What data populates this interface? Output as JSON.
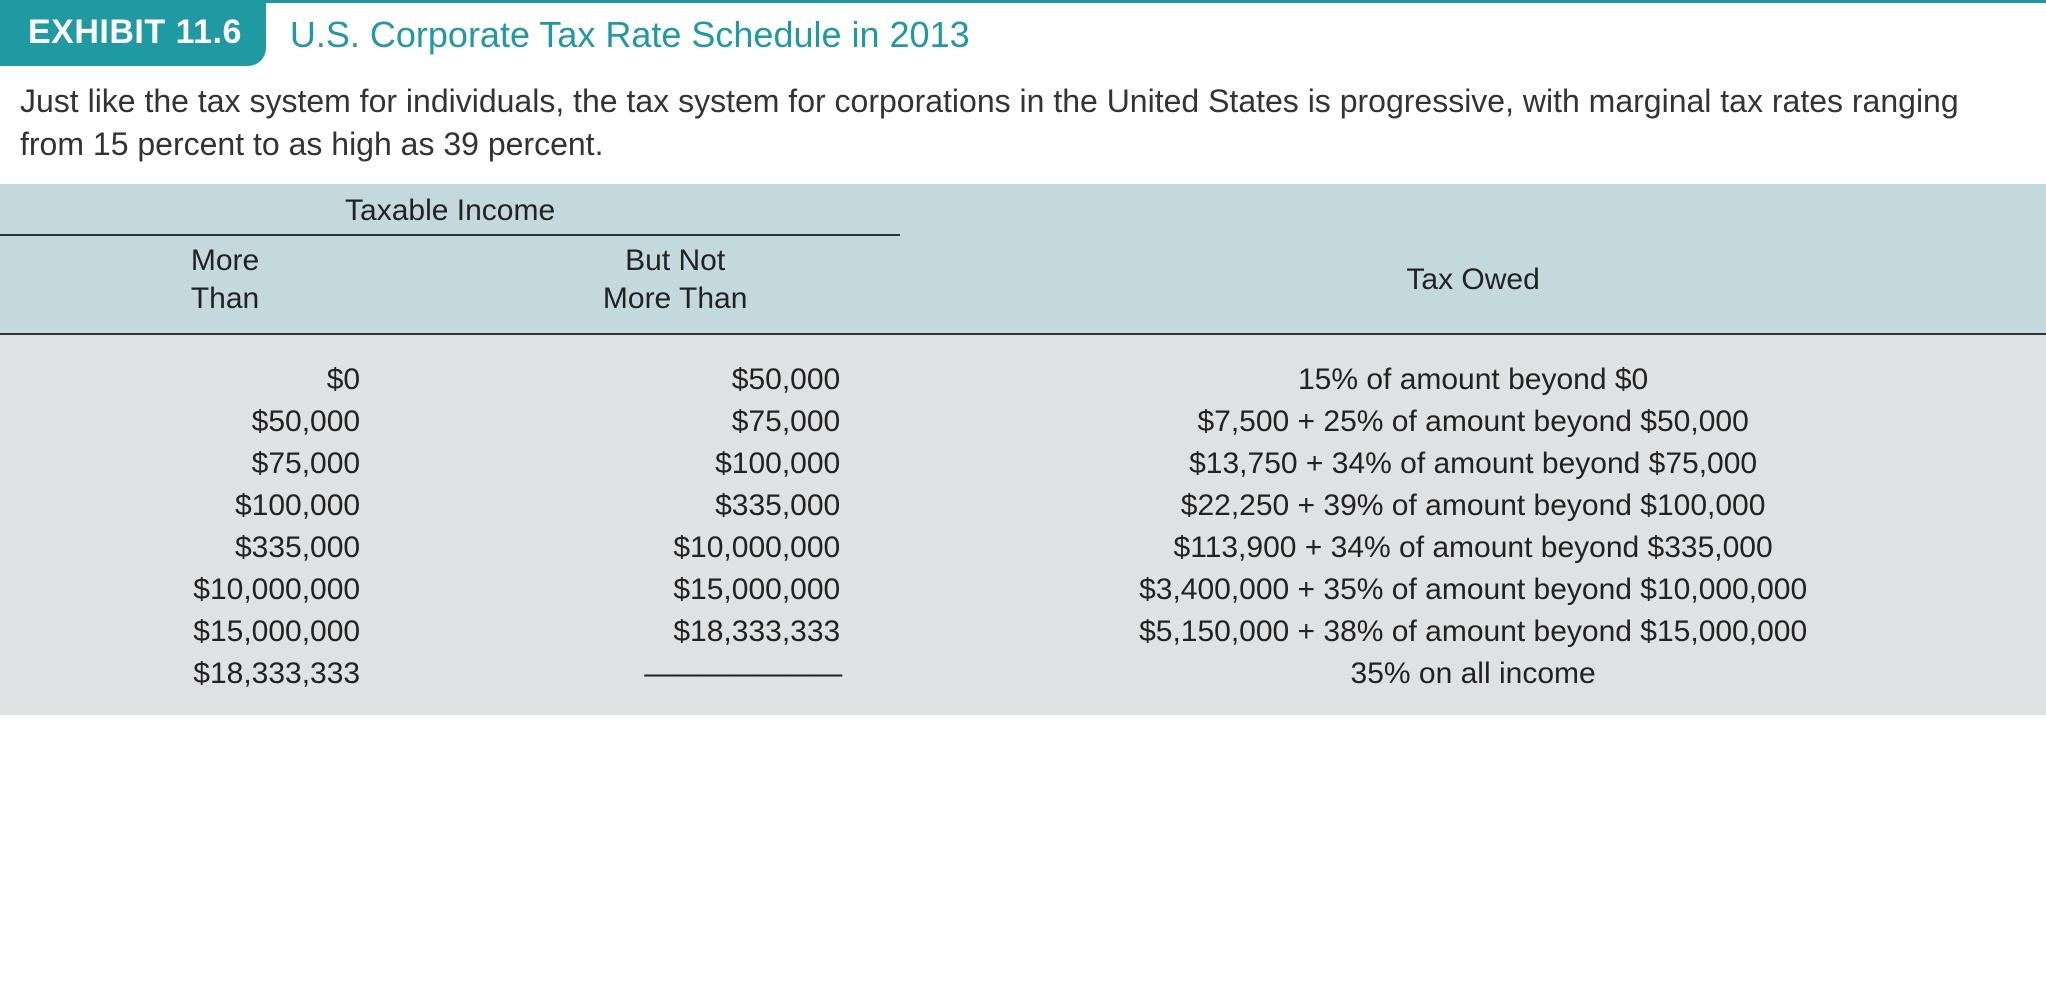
{
  "exhibit": {
    "badge": "EXHIBIT 11.6",
    "title": "U.S. Corporate Tax Rate Schedule in 2013",
    "caption": "Just like the tax system for individuals, the tax system for corporations in the United States is progressive, with marginal tax rates ranging from 15 percent to as high as 39 percent."
  },
  "table": {
    "span_header": "Taxable Income",
    "columns": {
      "more_than_line1": "More",
      "more_than_line2": "Than",
      "not_more_line1": "But Not",
      "not_more_line2": "More Than",
      "tax_owed": "Tax Owed"
    },
    "rows": [
      {
        "more": "$0",
        "notmore": "$50,000",
        "tax": "15% of amount beyond $0"
      },
      {
        "more": "$50,000",
        "notmore": "$75,000",
        "tax": "$7,500 + 25% of amount beyond $50,000"
      },
      {
        "more": "$75,000",
        "notmore": "$100,000",
        "tax": "$13,750 + 34% of amount beyond $75,000"
      },
      {
        "more": "$100,000",
        "notmore": "$335,000",
        "tax": "$22,250 + 39% of amount beyond $100,000"
      },
      {
        "more": "$335,000",
        "notmore": "$10,000,000",
        "tax": "$113,900 + 34% of amount beyond $335,000"
      },
      {
        "more": "$10,000,000",
        "notmore": "$15,000,000",
        "tax": "$3,400,000 + 35% of amount beyond $10,000,000"
      },
      {
        "more": "$15,000,000",
        "notmore": "$18,333,333",
        "tax": "$5,150,000 + 38% of amount beyond $15,000,000"
      },
      {
        "more": "$18,333,333",
        "notmore": "———————",
        "tax": "35% on all income"
      }
    ],
    "styling": {
      "header_bg": "#c4d9dd",
      "body_bg": "#e0e1e2",
      "accent": "#1f9aa3",
      "font_size_pt": 22,
      "border_color": "#333333"
    }
  }
}
